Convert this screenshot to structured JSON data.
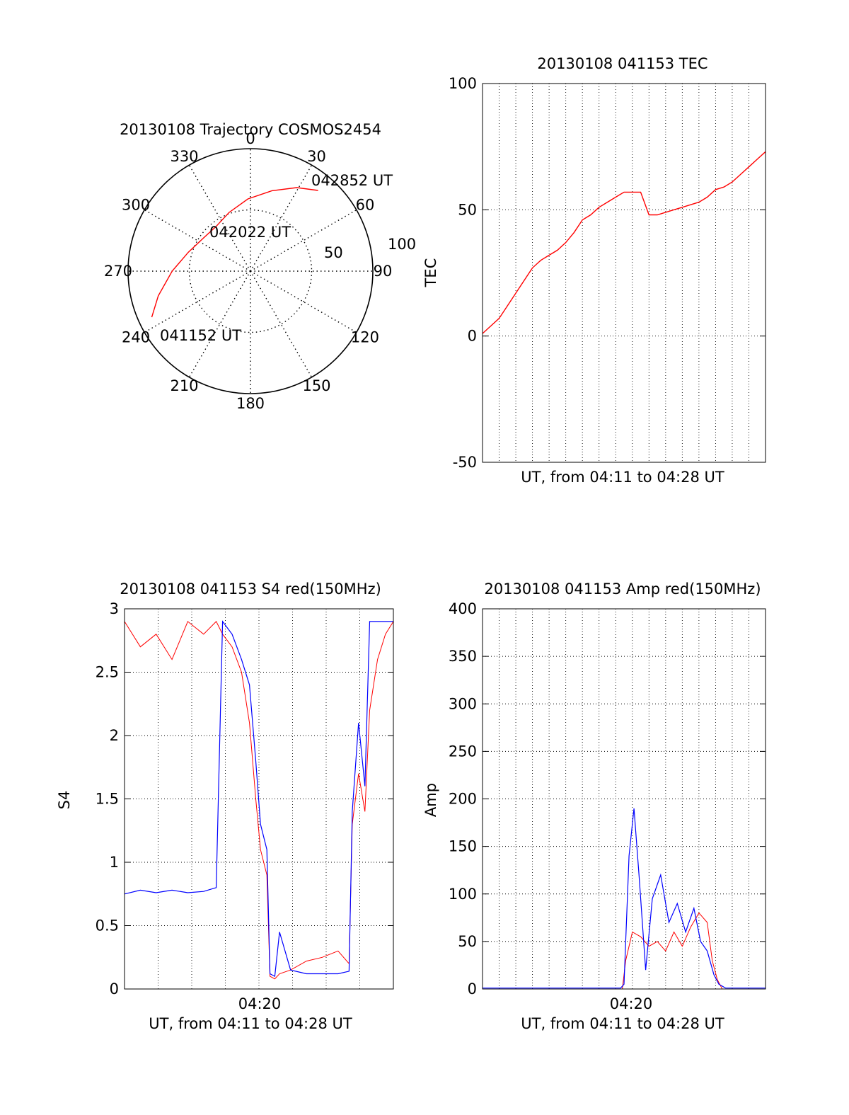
{
  "chart_data": [
    {
      "type": "polar",
      "title": "20130108 Trajectory COSMOS2454",
      "azimuth_labels": [
        "0",
        "30",
        "60",
        "90",
        "120",
        "150",
        "180",
        "210",
        "240",
        "270",
        "300",
        "330"
      ],
      "radial_labels": [
        "50",
        "100"
      ],
      "elevation_rings": [
        50,
        100
      ],
      "grid": true,
      "annotations": [
        "042852 UT",
        "042022 UT",
        "041152 UT"
      ],
      "trajectory": {
        "color": "#ff0000",
        "points": [
          {
            "az": 245,
            "r": 89
          },
          {
            "az": 255,
            "r": 78
          },
          {
            "az": 270,
            "r": 64
          },
          {
            "az": 287,
            "r": 53
          },
          {
            "az": 305,
            "r": 47
          },
          {
            "az": 322,
            "r": 46
          },
          {
            "az": 340,
            "r": 51
          },
          {
            "az": 358,
            "r": 59
          },
          {
            "az": 15,
            "r": 68
          },
          {
            "az": 29,
            "r": 78
          },
          {
            "az": 40,
            "r": 86
          }
        ]
      }
    },
    {
      "type": "line",
      "title": "20130108 041153 TEC",
      "xlabel": "UT, from 04:11 to 04:28 UT",
      "ylabel": "TEC",
      "xlim": [
        0,
        17
      ],
      "ylim": [
        -50,
        100
      ],
      "y_ticks": [
        "-50",
        "0",
        "50",
        "100"
      ],
      "grid": true,
      "series": [
        {
          "color": "#ff0000",
          "x": [
            0,
            0.5,
            1,
            1.5,
            2,
            2.5,
            3,
            3.5,
            4,
            4.5,
            5,
            5.5,
            6,
            6.5,
            7,
            7.5,
            8,
            8.5,
            9,
            9.5,
            10,
            10.5,
            11,
            11.5,
            12,
            12.5,
            13,
            13.5,
            14,
            14.5,
            15,
            15.5,
            16,
            16.5,
            17
          ],
          "y": [
            1,
            4,
            7,
            12,
            17,
            22,
            27,
            30,
            32,
            34,
            37,
            41,
            46,
            48,
            51,
            53,
            55,
            57,
            57,
            57,
            48,
            48,
            49,
            50,
            51,
            52,
            53,
            55,
            58,
            59,
            61,
            64,
            67,
            70,
            73
          ]
        }
      ]
    },
    {
      "type": "line",
      "title": "20130108 041153 S4 red(150MHz)",
      "xlabel": "UT, from 04:11 to 04:28 UT",
      "ylabel": "S4",
      "xlim": [
        0,
        17
      ],
      "ylim": [
        0,
        3
      ],
      "y_ticks": [
        "0",
        "0.5",
        "1",
        "1.5",
        "2",
        "2.5",
        "3"
      ],
      "x_tick_label": "04:20",
      "grid": true,
      "series": [
        {
          "color": "#0000ff",
          "x": [
            0,
            1,
            2,
            3,
            4,
            5,
            5.8,
            6.2,
            6.8,
            7.4,
            7.9,
            8.3,
            8.6,
            9,
            9.2,
            9.5,
            9.8,
            10.5,
            11.5,
            12.5,
            13.5,
            14.2,
            14.4,
            14.8,
            15.2,
            15.5,
            16,
            16.5,
            17
          ],
          "y": [
            0.75,
            0.78,
            0.76,
            0.78,
            0.76,
            0.77,
            0.8,
            2.9,
            2.8,
            2.6,
            2.4,
            1.8,
            1.3,
            1.1,
            0.12,
            0.1,
            0.45,
            0.15,
            0.12,
            0.12,
            0.12,
            0.14,
            1.4,
            2.1,
            1.6,
            2.9,
            2.9,
            2.9,
            2.9
          ]
        },
        {
          "color": "#ff0000",
          "x": [
            0,
            1,
            2,
            3,
            4,
            5,
            5.8,
            6.2,
            6.8,
            7.4,
            7.9,
            8.3,
            8.6,
            9,
            9.2,
            9.5,
            9.8,
            10.5,
            11.5,
            12.5,
            13.5,
            14.2,
            14.4,
            14.8,
            15.2,
            15.5,
            16,
            16.5,
            17
          ],
          "y": [
            2.9,
            2.7,
            2.8,
            2.6,
            2.9,
            2.8,
            2.9,
            2.8,
            2.7,
            2.5,
            2.1,
            1.5,
            1.1,
            0.9,
            0.1,
            0.08,
            0.12,
            0.15,
            0.22,
            0.25,
            0.3,
            0.2,
            1.3,
            1.7,
            1.4,
            2.2,
            2.6,
            2.8,
            2.9
          ]
        }
      ]
    },
    {
      "type": "line",
      "title": "20130108 041153 Amp red(150MHz)",
      "xlabel": "UT, from 04:11 to 04:28 UT",
      "ylabel": "Amp",
      "xlim": [
        0,
        17
      ],
      "ylim": [
        0,
        400
      ],
      "y_ticks": [
        "0",
        "50",
        "100",
        "150",
        "200",
        "250",
        "300",
        "350",
        "400"
      ],
      "x_tick_label": "04:20",
      "grid": true,
      "series": [
        {
          "color": "#ff0000",
          "x": [
            0,
            4,
            8.4,
            8.6,
            9,
            9.5,
            10,
            10.5,
            11,
            11.5,
            12,
            12.5,
            13,
            13.5,
            13.8,
            14.1,
            14.4,
            15,
            17
          ],
          "y": [
            0,
            0,
            0,
            30,
            60,
            55,
            45,
            50,
            40,
            60,
            45,
            65,
            80,
            70,
            30,
            10,
            0,
            0,
            0
          ]
        },
        {
          "color": "#0000ff",
          "x": [
            0,
            4,
            8.3,
            8.5,
            8.8,
            9.1,
            9.4,
            9.8,
            10.2,
            10.7,
            11.2,
            11.7,
            12.2,
            12.7,
            13.1,
            13.5,
            13.9,
            14.2,
            14.6,
            17
          ],
          "y": [
            1,
            1,
            1,
            5,
            140,
            190,
            120,
            20,
            95,
            120,
            70,
            90,
            60,
            85,
            50,
            40,
            15,
            5,
            1,
            1
          ]
        }
      ]
    }
  ]
}
